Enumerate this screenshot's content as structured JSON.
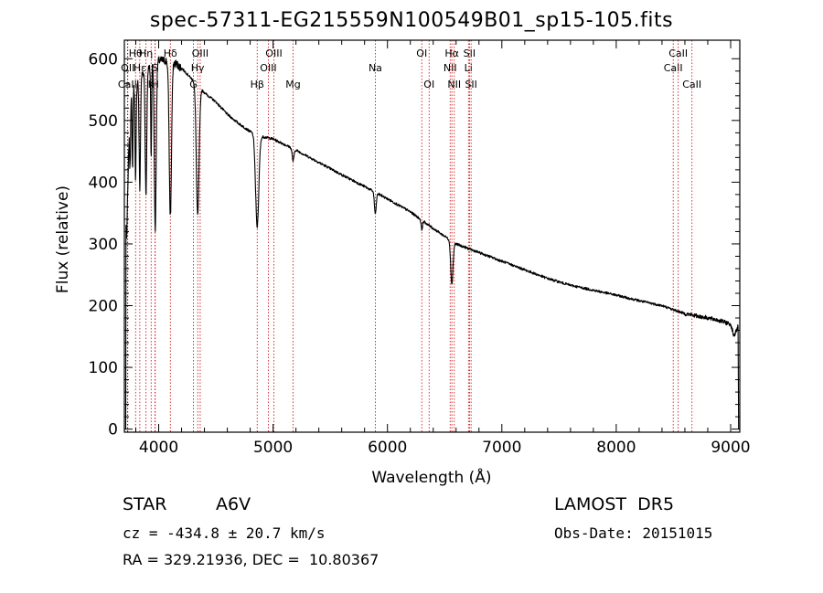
{
  "title": "spec-57311-EG215559N100549B01_sp15-105.fits",
  "info": {
    "object_class": "STAR",
    "subclass": "A6V",
    "survey": "LAMOST  DR5",
    "cz": "cz = -434.8 ± 20.7 km/s",
    "obs_date": "Obs-Date: 20151015",
    "coords": "RA = 329.21936, DEC =  10.80367"
  },
  "chart_data": {
    "type": "line",
    "title": "spec-57311-EG215559N100549B01_sp15-105.fits",
    "xlabel": "Wavelength (Å)",
    "ylabel": "Flux (relative)",
    "xlim": [
      3700,
      9080
    ],
    "ylim": [
      -5,
      630
    ],
    "xticks": [
      4000,
      5000,
      6000,
      7000,
      8000,
      9000
    ],
    "yticks": [
      0,
      100,
      200,
      300,
      400,
      500,
      600
    ],
    "line_color": "#000000",
    "marker_color": "#cc0000",
    "continuum": {
      "x": [
        3700,
        3750,
        3800,
        3850,
        3900,
        3950,
        4000,
        4050,
        4100,
        4150,
        4200,
        4300,
        4400,
        4500,
        4600,
        4700,
        4800,
        4900,
        5000,
        5200,
        5400,
        5600,
        5800,
        6000,
        6200,
        6400,
        6600,
        6800,
        7000,
        7200,
        7400,
        7600,
        7800,
        8000,
        8200,
        8400,
        8600,
        8800,
        8900,
        9000,
        9030,
        9060,
        9080
      ],
      "y": [
        150,
        545,
        560,
        575,
        585,
        592,
        597,
        597,
        596,
        592,
        585,
        565,
        545,
        530,
        510,
        495,
        482,
        474,
        470,
        452,
        432,
        412,
        393,
        373,
        352,
        325,
        300,
        286,
        272,
        258,
        244,
        233,
        225,
        217,
        208,
        200,
        187,
        180,
        176,
        170,
        150,
        165,
        168
      ]
    },
    "absorption_lines": [
      {
        "x": 3750,
        "depth": 120,
        "width": 4
      },
      {
        "x": 3771,
        "depth": 130,
        "width": 4
      },
      {
        "x": 3798,
        "depth": 160,
        "width": 5
      },
      {
        "x": 3835,
        "depth": 180,
        "width": 6
      },
      {
        "x": 3889,
        "depth": 200,
        "width": 7
      },
      {
        "x": 3934,
        "depth": 150,
        "width": 4
      },
      {
        "x": 3970,
        "depth": 270,
        "width": 8
      },
      {
        "x": 4102,
        "depth": 250,
        "width": 10
      },
      {
        "x": 4341,
        "depth": 210,
        "width": 12
      },
      {
        "x": 4861,
        "depth": 150,
        "width": 14
      },
      {
        "x": 5175,
        "depth": 20,
        "width": 8
      },
      {
        "x": 5894,
        "depth": 35,
        "width": 8
      },
      {
        "x": 6300,
        "depth": 15,
        "width": 6
      },
      {
        "x": 6563,
        "depth": 70,
        "width": 10
      }
    ],
    "line_markers": [
      {
        "label": "CaII",
        "x": 3727,
        "row": 3
      },
      {
        "label": "OII",
        "x": 3730,
        "row": 2
      },
      {
        "label": "Hθ",
        "x": 3798,
        "row": 1
      },
      {
        "label": "Hε",
        "x": 3835,
        "row": 2
      },
      {
        "label": "Hη",
        "x": 3889,
        "row": 1
      },
      {
        "label": "K",
        "x": 3934,
        "row": 3
      },
      {
        "label": "S",
        "x": 3968,
        "row": 2
      },
      {
        "label": "H",
        "x": 3970,
        "row": 3
      },
      {
        "label": "Hδ",
        "x": 4102,
        "row": 1
      },
      {
        "label": "G",
        "x": 4304,
        "row": 3
      },
      {
        "label": "Hγ",
        "x": 4341,
        "row": 2
      },
      {
        "label": "OIII",
        "x": 4363,
        "row": 1
      },
      {
        "label": "Hβ",
        "x": 4861,
        "row": 3
      },
      {
        "label": "OIII",
        "x": 4959,
        "row": 2
      },
      {
        "label": "OIII",
        "x": 5007,
        "row": 1
      },
      {
        "label": "Mg",
        "x": 5175,
        "row": 3
      },
      {
        "label": "Na",
        "x": 5894,
        "row": 2
      },
      {
        "label": "OI",
        "x": 6300,
        "row": 1
      },
      {
        "label": "OI",
        "x": 6364,
        "row": 3
      },
      {
        "label": "NII",
        "x": 6548,
        "row": 2
      },
      {
        "label": "Hα",
        "x": 6563,
        "row": 1
      },
      {
        "label": "NII",
        "x": 6584,
        "row": 3
      },
      {
        "label": "Li",
        "x": 6708,
        "row": 2
      },
      {
        "label": "SII",
        "x": 6717,
        "row": 1
      },
      {
        "label": "SII",
        "x": 6731,
        "row": 3
      },
      {
        "label": "CaII",
        "x": 8498,
        "row": 2
      },
      {
        "label": "CaII",
        "x": 8542,
        "row": 1
      },
      {
        "label": "CaII",
        "x": 8662,
        "row": 3
      }
    ]
  }
}
